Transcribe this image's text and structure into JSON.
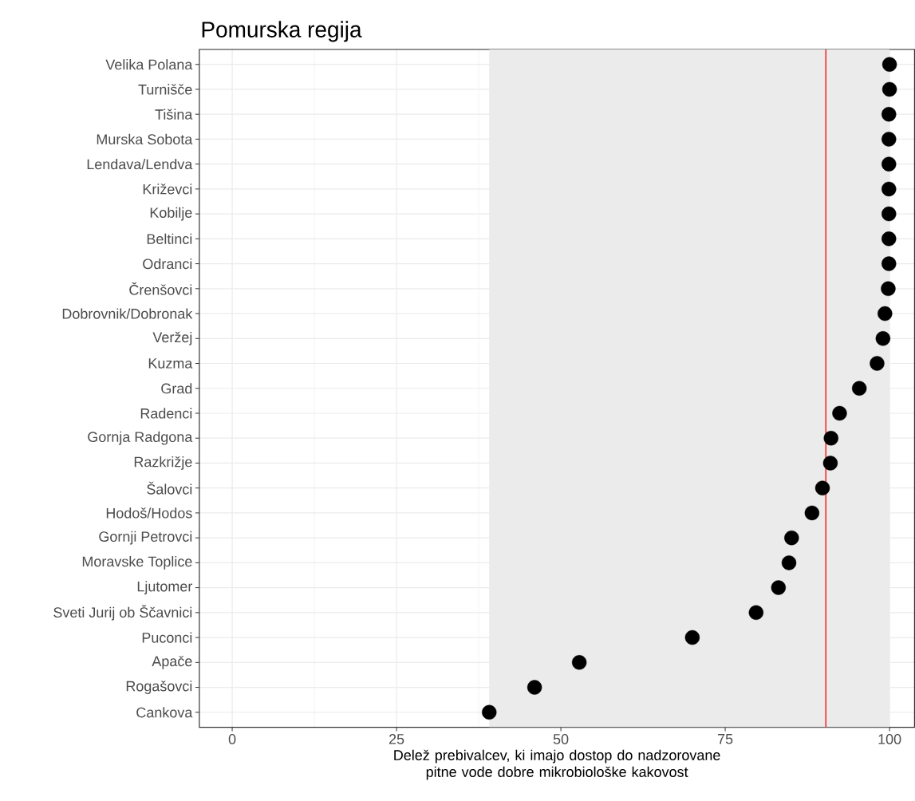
{
  "chart_data": {
    "type": "scatter",
    "orientation": "horizontal",
    "title": "Pomurska regija",
    "xlabel": "Delež prebivalcev, ki imajo dostop do nadzorovane pitne vode dobre mikrobiološke kakovost",
    "categories": [
      "Velika Polana",
      "Turnišče",
      "Tišina",
      "Murska Sobota",
      "Lendava/Lendva",
      "Križevci",
      "Kobilje",
      "Beltinci",
      "Odranci",
      "Črenšovci",
      "Dobrovnik/Dobronak",
      "Veržej",
      "Kuzma",
      "Grad",
      "Radenci",
      "Gornja Radgona",
      "Razkrižje",
      "Šalovci",
      "Hodoš/Hodos",
      "Gornji Petrovci",
      "Moravske Toplice",
      "Ljutomer",
      "Sveti Jurij ob Ščavnici",
      "Puconci",
      "Apače",
      "Rogašovci",
      "Cankova"
    ],
    "values": [
      100,
      100,
      99.9,
      99.9,
      99.9,
      99.9,
      99.9,
      99.9,
      99.9,
      99.8,
      99.3,
      99.0,
      98.1,
      95.4,
      92.4,
      91.1,
      91.0,
      89.8,
      88.2,
      85.1,
      84.7,
      83.1,
      79.7,
      70.0,
      52.8,
      46.0,
      39.1
    ],
    "color": "#000000",
    "marker": "circle",
    "xlim": [
      -5,
      103.8
    ],
    "xticks": [
      0,
      25,
      50,
      75,
      100
    ],
    "grid": true,
    "bands": [
      {
        "axis": "x",
        "from": 39.1,
        "to": 100,
        "color": "#ebebeb"
      }
    ],
    "ref_lines": [
      {
        "axis": "x",
        "value": 90.3,
        "color": "#ff0000"
      }
    ]
  }
}
